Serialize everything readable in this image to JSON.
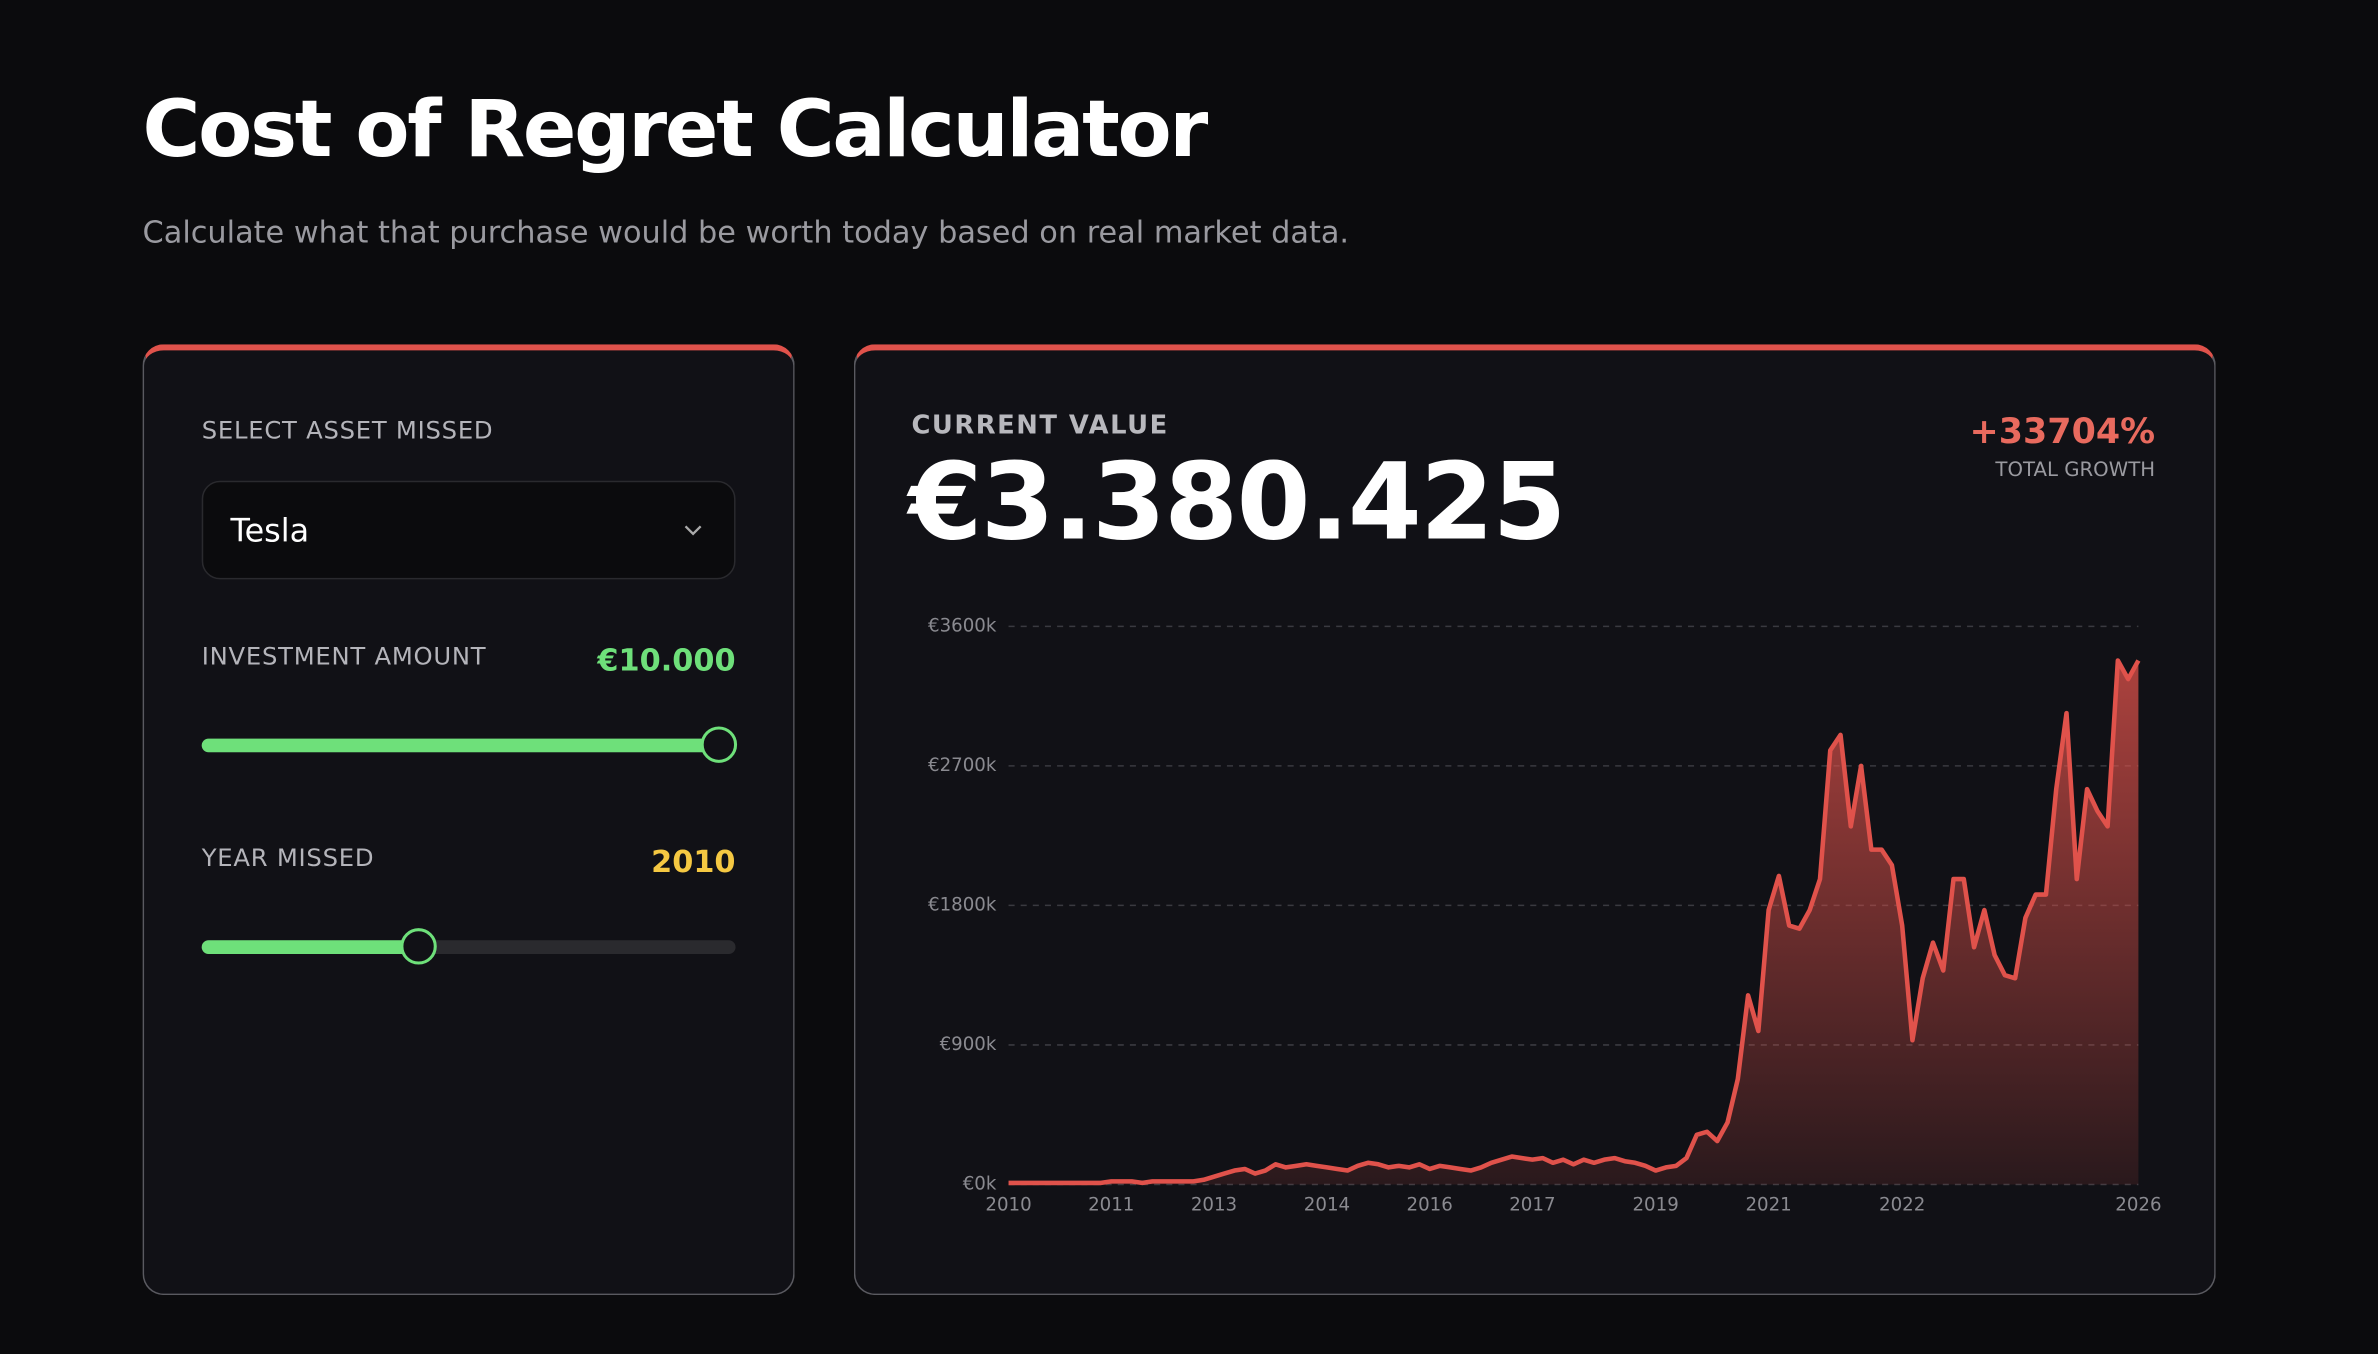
{
  "header": {
    "title": "Cost of Regret Calculator",
    "subtitle": "Calculate what that purchase would be worth today based on real market data."
  },
  "controls": {
    "asset_label": "SELECT ASSET MISSED",
    "asset": "Tesla",
    "amount_label": "INVESTMENT AMOUNT",
    "amount": "€10.000",
    "year_label": "YEAR MISSED",
    "year": "2010"
  },
  "summary": {
    "label": "CURRENT VALUE",
    "value": "€3.380.425",
    "growth": "+33704%",
    "growth_label": "TOTAL GROWTH"
  },
  "chart_data": {
    "type": "area",
    "color": "#e0524b",
    "grid": true,
    "categories": [
      "2010",
      null,
      null,
      null,
      null,
      null,
      null,
      null,
      null,
      null,
      "2011",
      null,
      null,
      null,
      null,
      null,
      null,
      null,
      null,
      null,
      "2013",
      null,
      null,
      null,
      null,
      null,
      null,
      null,
      null,
      null,
      null,
      "2014",
      null,
      null,
      null,
      null,
      null,
      null,
      null,
      null,
      null,
      "2016",
      null,
      null,
      null,
      null,
      null,
      null,
      null,
      null,
      null,
      "2017",
      null,
      null,
      null,
      null,
      null,
      null,
      null,
      null,
      null,
      null,
      null,
      "2019",
      null,
      null,
      null,
      null,
      null,
      null,
      null,
      null,
      null,
      null,
      "2021",
      null,
      null,
      null,
      null,
      null,
      null,
      null,
      null,
      null,
      null,
      null,
      null,
      "2022",
      null,
      null,
      null,
      null,
      null,
      null,
      null,
      null,
      null,
      null,
      null,
      null,
      null,
      null,
      null,
      null,
      null,
      null,
      null,
      null,
      null,
      null,
      "2026"
    ],
    "values": [
      10,
      10,
      10,
      10,
      10,
      10,
      10,
      10,
      10,
      10,
      20,
      20,
      20,
      10,
      20,
      20,
      20,
      20,
      20,
      30,
      50,
      70,
      90,
      100,
      70,
      90,
      130,
      110,
      120,
      130,
      120,
      110,
      100,
      90,
      120,
      140,
      130,
      110,
      120,
      110,
      130,
      100,
      120,
      110,
      100,
      90,
      110,
      140,
      160,
      180,
      170,
      160,
      170,
      140,
      160,
      130,
      160,
      140,
      160,
      170,
      150,
      140,
      120,
      90,
      110,
      120,
      170,
      320,
      340,
      280,
      400,
      680,
      1220,
      990,
      1770,
      1990,
      1670,
      1650,
      1770,
      1970,
      2800,
      2900,
      2310,
      2700,
      2160,
      2160,
      2060,
      1670,
      930,
      1330,
      1560,
      1380,
      1970,
      1970,
      1530,
      1770,
      1480,
      1350,
      1330,
      1720,
      1870,
      1870,
      2550,
      3040,
      1970,
      2550,
      2410,
      2310,
      3380,
      3260,
      3380
    ],
    "ylim": [
      0,
      3600
    ],
    "yticks": [
      {
        "value": 0,
        "label": "€0k"
      },
      {
        "value": 900,
        "label": "€900k"
      },
      {
        "value": 1800,
        "label": "€1800k"
      },
      {
        "value": 2700,
        "label": "€2700k"
      },
      {
        "value": 3600,
        "label": "€3600k"
      }
    ]
  }
}
